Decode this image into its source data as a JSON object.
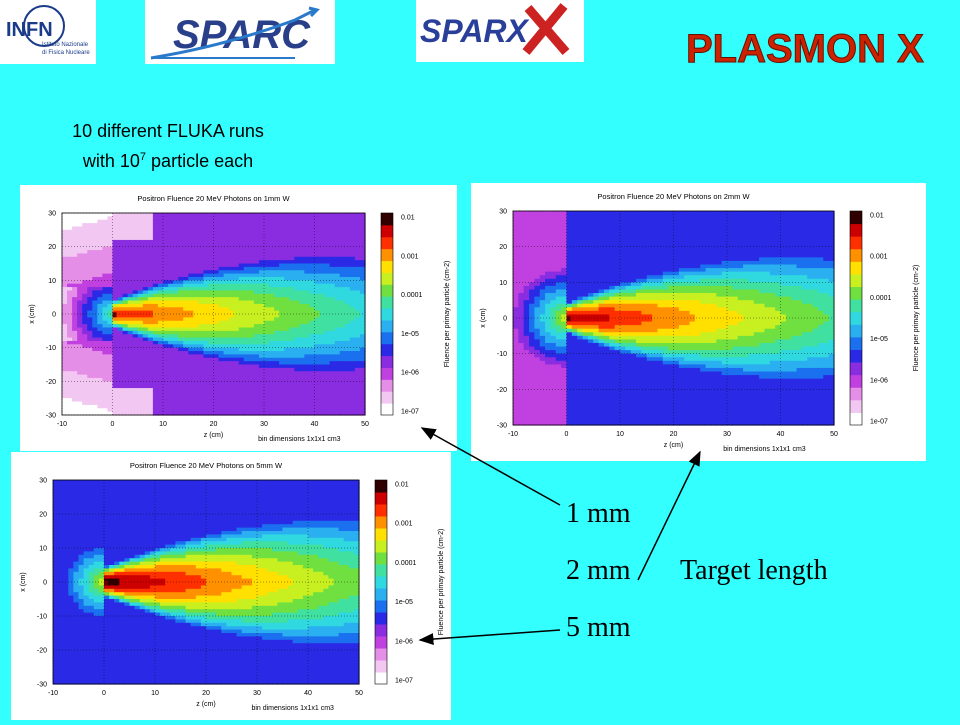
{
  "logos": {
    "infn": {
      "title": "INFN",
      "subtitle1": "Istituto Nazionale",
      "subtitle2": "di Fisica Nucleare"
    },
    "sparc": "SPARC",
    "sparx": "SPARX",
    "plasmonx": "PLASMON X"
  },
  "caption": {
    "line1": "10 different FLUKA runs",
    "line2_pre": "with 10",
    "line2_sup": "7",
    "line2_post": " particle each"
  },
  "labels": {
    "mm1": "1 mm",
    "mm2": "2 mm",
    "mm5": "5 mm",
    "target": "Target length"
  },
  "colors": {
    "background": "#33ffff",
    "arrow": "#000000"
  },
  "chart_data": [
    {
      "type": "heatmap",
      "title": "Positron Fluence 20 MeV Photons on 1mm W",
      "xlabel": "z (cm)",
      "ylabel": "x (cm)",
      "bin_note": "bin dimensions 1x1x1 cm3",
      "colorbar_label": "Fluence per primay particle (cm-2)",
      "xlim": [
        -10,
        50
      ],
      "ylim": [
        -30,
        30
      ],
      "xticks": [
        "-10",
        "0",
        "10",
        "20",
        "30",
        "40",
        "50"
      ],
      "yticks": [
        "30",
        "20",
        "10",
        "0",
        "-10",
        "-20",
        "-30"
      ],
      "colorbar_ticks": [
        "0.01",
        "0.001",
        "0.0001",
        "1e-05",
        "1e-06",
        "1e-07"
      ],
      "target_thickness_mm": 1,
      "peak_z": 0
    },
    {
      "type": "heatmap",
      "title": "Positron Fluence 20 MeV Photons on 2mm W",
      "xlabel": "z (cm)",
      "ylabel": "x (cm)",
      "bin_note": "bin dimensions 1x1x1 cm3",
      "colorbar_label": "Fluence per primay particle (cm-2)",
      "xlim": [
        -10,
        50
      ],
      "ylim": [
        -30,
        30
      ],
      "xticks": [
        "-10",
        "0",
        "10",
        "20",
        "30",
        "40",
        "50"
      ],
      "yticks": [
        "30",
        "20",
        "10",
        "0",
        "-10",
        "-20",
        "-30"
      ],
      "colorbar_ticks": [
        "0.01",
        "0.001",
        "0.0001",
        "1e-05",
        "1e-06",
        "1e-07"
      ],
      "target_thickness_mm": 2,
      "peak_z": 0
    },
    {
      "type": "heatmap",
      "title": "Positron Fluence 20 MeV Photons on 5mm W",
      "xlabel": "z (cm)",
      "ylabel": "x (cm)",
      "bin_note": "bin dimensions 1x1x1 cm3",
      "colorbar_label": "Fluence per primay particle (cm-2)",
      "xlim": [
        -10,
        50
      ],
      "ylim": [
        -30,
        30
      ],
      "xticks": [
        "-10",
        "0",
        "10",
        "20",
        "30",
        "40",
        "50"
      ],
      "yticks": [
        "30",
        "20",
        "10",
        "0",
        "-10",
        "-20",
        "-30"
      ],
      "colorbar_ticks": [
        "0.01",
        "0.001",
        "0.0001",
        "1e-05",
        "1e-06",
        "1e-07"
      ],
      "target_thickness_mm": 5,
      "peak_z": 0
    }
  ]
}
